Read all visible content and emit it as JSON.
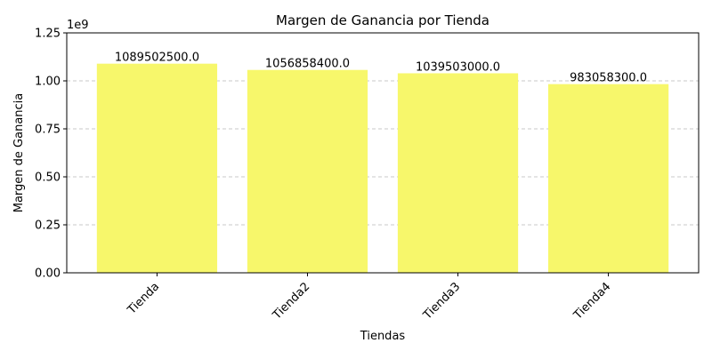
{
  "chart_data": {
    "type": "bar",
    "title": "Margen de Ganancia por Tienda",
    "xlabel": "Tiendas",
    "ylabel": "Margen de Ganancia",
    "offset_label": "1e9",
    "categories": [
      "Tienda",
      "Tienda2",
      "Tienda3",
      "Tienda4"
    ],
    "values": [
      1089502500.0,
      1056858400.0,
      1039503000.0,
      983058300.0
    ],
    "data_labels": [
      "1089502500.0",
      "1056858400.0",
      "1039503000.0",
      "983058300.0"
    ],
    "y_ticks": [
      0,
      0.25,
      0.5,
      0.75,
      1.0,
      1.25
    ],
    "y_tick_labels": [
      "0.00",
      "0.25",
      "0.50",
      "0.75",
      "1.00",
      "1.25"
    ],
    "y_scale": 1000000000,
    "ylim": [
      0,
      1.25
    ],
    "grid": "y-dashed",
    "bar_color": "#f7f76b",
    "grid_color": "#c8c8c8"
  }
}
